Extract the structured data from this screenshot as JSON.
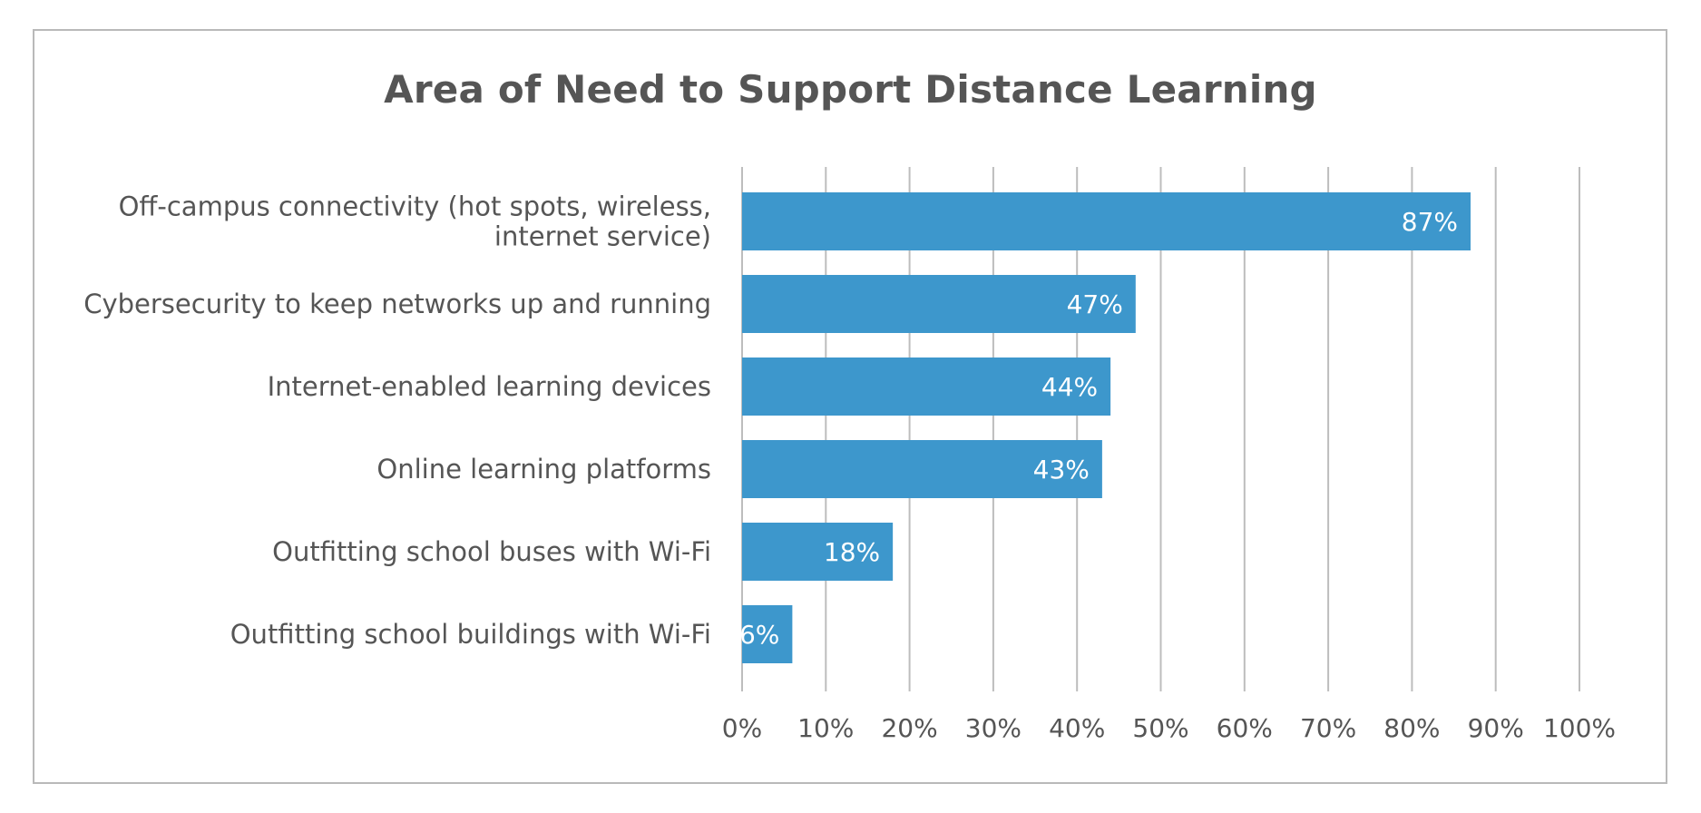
{
  "chart_data": {
    "type": "bar",
    "orientation": "horizontal",
    "title": "Area of Need to Support Distance Learning",
    "xlabel": "",
    "ylabel": "",
    "categories": [
      [
        "Off-campus connectivity (hot spots, wireless,",
        "internet service)"
      ],
      [
        "Cybersecurity to keep networks up and running"
      ],
      [
        "Internet-enabled learning devices"
      ],
      [
        "Online learning platforms"
      ],
      [
        "Outfitting school buses with Wi-Fi"
      ],
      [
        "Outfitting school buildings with Wi-Fi"
      ]
    ],
    "values": [
      87,
      47,
      44,
      43,
      18,
      6
    ],
    "value_labels": [
      "87%",
      "47%",
      "44%",
      "43%",
      "18%",
      "6%"
    ],
    "xlim": [
      0,
      100
    ],
    "x_ticks": [
      0,
      10,
      20,
      30,
      40,
      50,
      60,
      70,
      80,
      90,
      100
    ],
    "x_tick_labels": [
      "0%",
      "10%",
      "20%",
      "30%",
      "40%",
      "50%",
      "60%",
      "70%",
      "80%",
      "90%",
      "100%"
    ],
    "grid": "vertical",
    "legend": "none",
    "colors": {
      "bar": "#3d97cc",
      "grid": "#bdbdbd",
      "text": "#555555",
      "border": "#b9b9b9"
    }
  }
}
